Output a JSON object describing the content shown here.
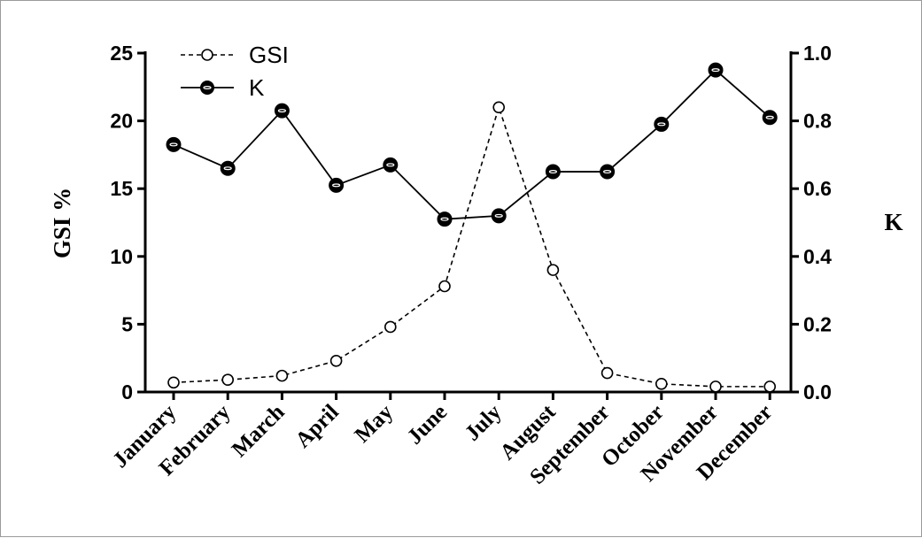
{
  "chart_data": {
    "type": "line",
    "categories": [
      "January",
      "February",
      "March",
      "April",
      "May",
      "June",
      "July",
      "August",
      "September",
      "October",
      "November",
      "December"
    ],
    "y_left": {
      "label": "GSI %",
      "range": [
        0,
        25
      ],
      "ticks": [
        "0",
        "5",
        "10",
        "15",
        "20",
        "25"
      ],
      "tick_values": [
        0,
        5,
        10,
        15,
        20,
        25
      ]
    },
    "y_right": {
      "label": "K",
      "range": [
        0,
        1.0
      ],
      "ticks": [
        "0.0",
        "0.2",
        "0.4",
        "0.6",
        "0.8",
        "1.0"
      ],
      "tick_values": [
        0,
        0.2,
        0.4,
        0.6,
        0.8,
        1.0
      ]
    },
    "grid": false,
    "legend_position": "top-left",
    "series": [
      {
        "name": "GSI",
        "axis": "left",
        "style": "dashed-open-circle",
        "values": [
          0.7,
          0.9,
          1.2,
          2.3,
          4.8,
          7.8,
          21.0,
          9.0,
          1.4,
          0.6,
          0.4,
          0.4
        ]
      },
      {
        "name": "K",
        "axis": "right",
        "style": "solid-filled-circle",
        "values": [
          0.73,
          0.66,
          0.83,
          0.61,
          0.67,
          0.51,
          0.52,
          0.65,
          0.65,
          0.79,
          0.95,
          0.81
        ]
      }
    ]
  }
}
